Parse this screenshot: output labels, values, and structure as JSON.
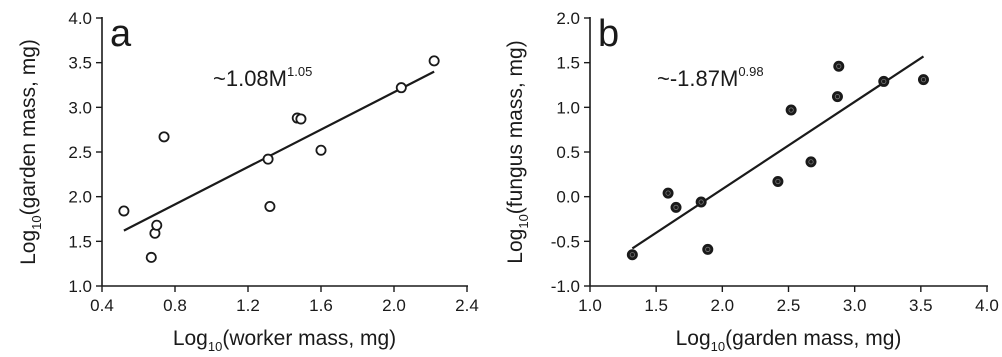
{
  "chart_data": [
    {
      "type": "scatter",
      "panel_label": "a",
      "xlabel": {
        "prefix": "Log",
        "sub": "10",
        "rest": "(worker mass, mg)"
      },
      "ylabel": {
        "prefix": "Log",
        "sub": "10",
        "rest": "(garden mass, mg)"
      },
      "xlim": [
        0.4,
        2.4
      ],
      "ylim": [
        1.0,
        4.0
      ],
      "xticks": [
        "0.4",
        "0.8",
        "1.2",
        "1.6",
        "2.0",
        "2.4"
      ],
      "yticks": [
        "1.0",
        "1.5",
        "2.0",
        "2.5",
        "3.0",
        "3.5",
        "4.0"
      ],
      "fit_label": {
        "text": "~1.08M",
        "sup": "1.05"
      },
      "fit_line": {
        "x": [
          0.52,
          2.22
        ],
        "y": [
          1.62,
          3.4
        ]
      },
      "marker": {
        "style": "open",
        "color": "#1a1a1a"
      },
      "points": [
        {
          "x": 0.52,
          "y": 1.84
        },
        {
          "x": 0.67,
          "y": 1.32
        },
        {
          "x": 0.69,
          "y": 1.59
        },
        {
          "x": 0.7,
          "y": 1.68
        },
        {
          "x": 0.74,
          "y": 2.67
        },
        {
          "x": 1.31,
          "y": 2.42
        },
        {
          "x": 1.32,
          "y": 1.89
        },
        {
          "x": 1.47,
          "y": 2.88
        },
        {
          "x": 1.49,
          "y": 2.87
        },
        {
          "x": 1.6,
          "y": 2.52
        },
        {
          "x": 2.04,
          "y": 3.22
        },
        {
          "x": 2.22,
          "y": 3.52
        }
      ]
    },
    {
      "type": "scatter",
      "panel_label": "b",
      "xlabel": {
        "prefix": "Log",
        "sub": "10",
        "rest": "(garden mass, mg)"
      },
      "ylabel": {
        "prefix": "Log",
        "sub": "10",
        "rest": "(fungus mass, mg)"
      },
      "xlim": [
        1.0,
        4.0
      ],
      "ylim": [
        -1.0,
        2.0
      ],
      "xticks": [
        "1.0",
        "1.5",
        "2.0",
        "2.5",
        "3.0",
        "3.5",
        "4.0"
      ],
      "yticks": [
        "-1.0",
        "-0.5",
        "0.0",
        "0.5",
        "1.0",
        "1.5",
        "2.0"
      ],
      "fit_label": {
        "text": "~-1.87M",
        "sup": "0.98"
      },
      "fit_line": {
        "x": [
          1.32,
          3.52
        ],
        "y": [
          -0.58,
          1.57
        ]
      },
      "marker": {
        "style": "filled",
        "color": "#1a1a1a"
      },
      "points": [
        {
          "x": 1.32,
          "y": -0.65
        },
        {
          "x": 1.59,
          "y": 0.04
        },
        {
          "x": 1.65,
          "y": -0.12
        },
        {
          "x": 1.84,
          "y": -0.06
        },
        {
          "x": 1.89,
          "y": -0.59
        },
        {
          "x": 2.42,
          "y": 0.17
        },
        {
          "x": 2.52,
          "y": 0.97
        },
        {
          "x": 2.67,
          "y": 0.39
        },
        {
          "x": 2.87,
          "y": 1.12
        },
        {
          "x": 2.88,
          "y": 1.46
        },
        {
          "x": 3.22,
          "y": 1.29
        },
        {
          "x": 3.52,
          "y": 1.31
        }
      ]
    }
  ]
}
